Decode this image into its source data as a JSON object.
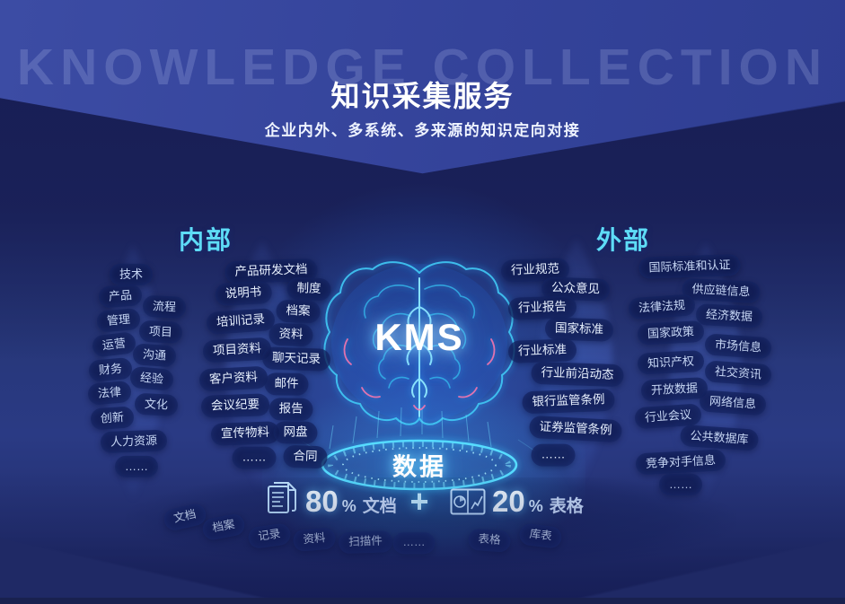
{
  "watermark": "KNOWLEDGE COLLECTION",
  "header": {
    "title": "知识采集服务",
    "subtitle": "企业内外、多系统、多来源的知识定向对接"
  },
  "center": {
    "kms_label": "KMS",
    "data_label": "数据"
  },
  "internal": {
    "header": "内部",
    "outer_tags": [
      "技术",
      "产品",
      "流程",
      "管理",
      "项目",
      "运营",
      "沟通",
      "财务",
      "经验",
      "法律",
      "文化",
      "创新",
      "人力资源",
      "……"
    ],
    "inner_tags": [
      "产品研发文档",
      "说明书",
      "制度",
      "档案",
      "培训记录",
      "资料",
      "项目资料",
      "聊天记录",
      "客户资料",
      "邮件",
      "会议纪要",
      "报告",
      "宣传物料",
      "网盘",
      "……",
      "合同"
    ]
  },
  "external": {
    "header": "外部",
    "inner_tags": [
      "行业规范",
      "公众意见",
      "行业报告",
      "国家标准",
      "行业标准",
      "行业前沿动态",
      "银行监管条例",
      "证券监管条例",
      "……"
    ],
    "outer_tags": [
      "国际标准和认证",
      "供应链信息",
      "法律法规",
      "经济数据",
      "国家政策",
      "市场信息",
      "知识产权",
      "社交资讯",
      "开放数据",
      "网络信息",
      "行业会议",
      "公共数据库",
      "竞争对手信息",
      "……"
    ]
  },
  "stats": {
    "doc_icon": "document-stack-icon",
    "doc_value": "80",
    "doc_unit": "%",
    "doc_label": "文档",
    "plus": "+",
    "table_icon": "table-chart-icon",
    "table_value": "20",
    "table_unit": "%",
    "table_label": "表格"
  },
  "bottom_tags": [
    "文档",
    "档案",
    "记录",
    "资料",
    "扫描件",
    "……",
    "表格",
    "库表"
  ],
  "colors": {
    "accent_cyan": "#5edcf6",
    "glow_cyan": "#57dcff",
    "pill_bg": "#0e1a50",
    "bg_dark_navy": "#181e54",
    "bg_mid_blue": "#273779",
    "bg_light_band": "#34439a",
    "pink_accent": "#ff77ad",
    "text_white": "#ffffff"
  }
}
